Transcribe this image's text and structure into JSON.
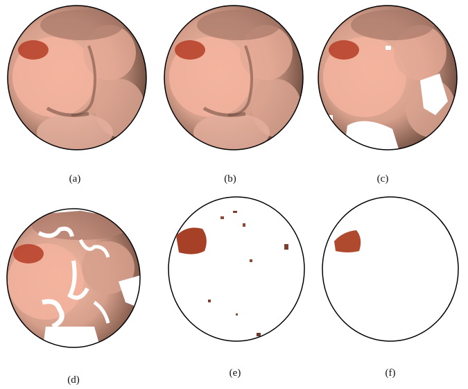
{
  "figure": {
    "panels": [
      {
        "id": "a",
        "caption": "(a)",
        "content": "full-image"
      },
      {
        "id": "b",
        "caption": "(b)",
        "content": "full-image"
      },
      {
        "id": "c",
        "caption": "(c)",
        "content": "masked-image"
      },
      {
        "id": "d",
        "caption": "(d)",
        "content": "masked-image-holes"
      },
      {
        "id": "e",
        "caption": "(e)",
        "content": "sparse-segmentation"
      },
      {
        "id": "f",
        "caption": "(f)",
        "content": "lesion-only"
      }
    ],
    "colors": {
      "tissue_base": "#c99a8a",
      "tissue_light": "#f0b7a2",
      "tissue_dark": "#6d4a3d",
      "lesion": "#b8442c",
      "outline": "#000000"
    }
  }
}
